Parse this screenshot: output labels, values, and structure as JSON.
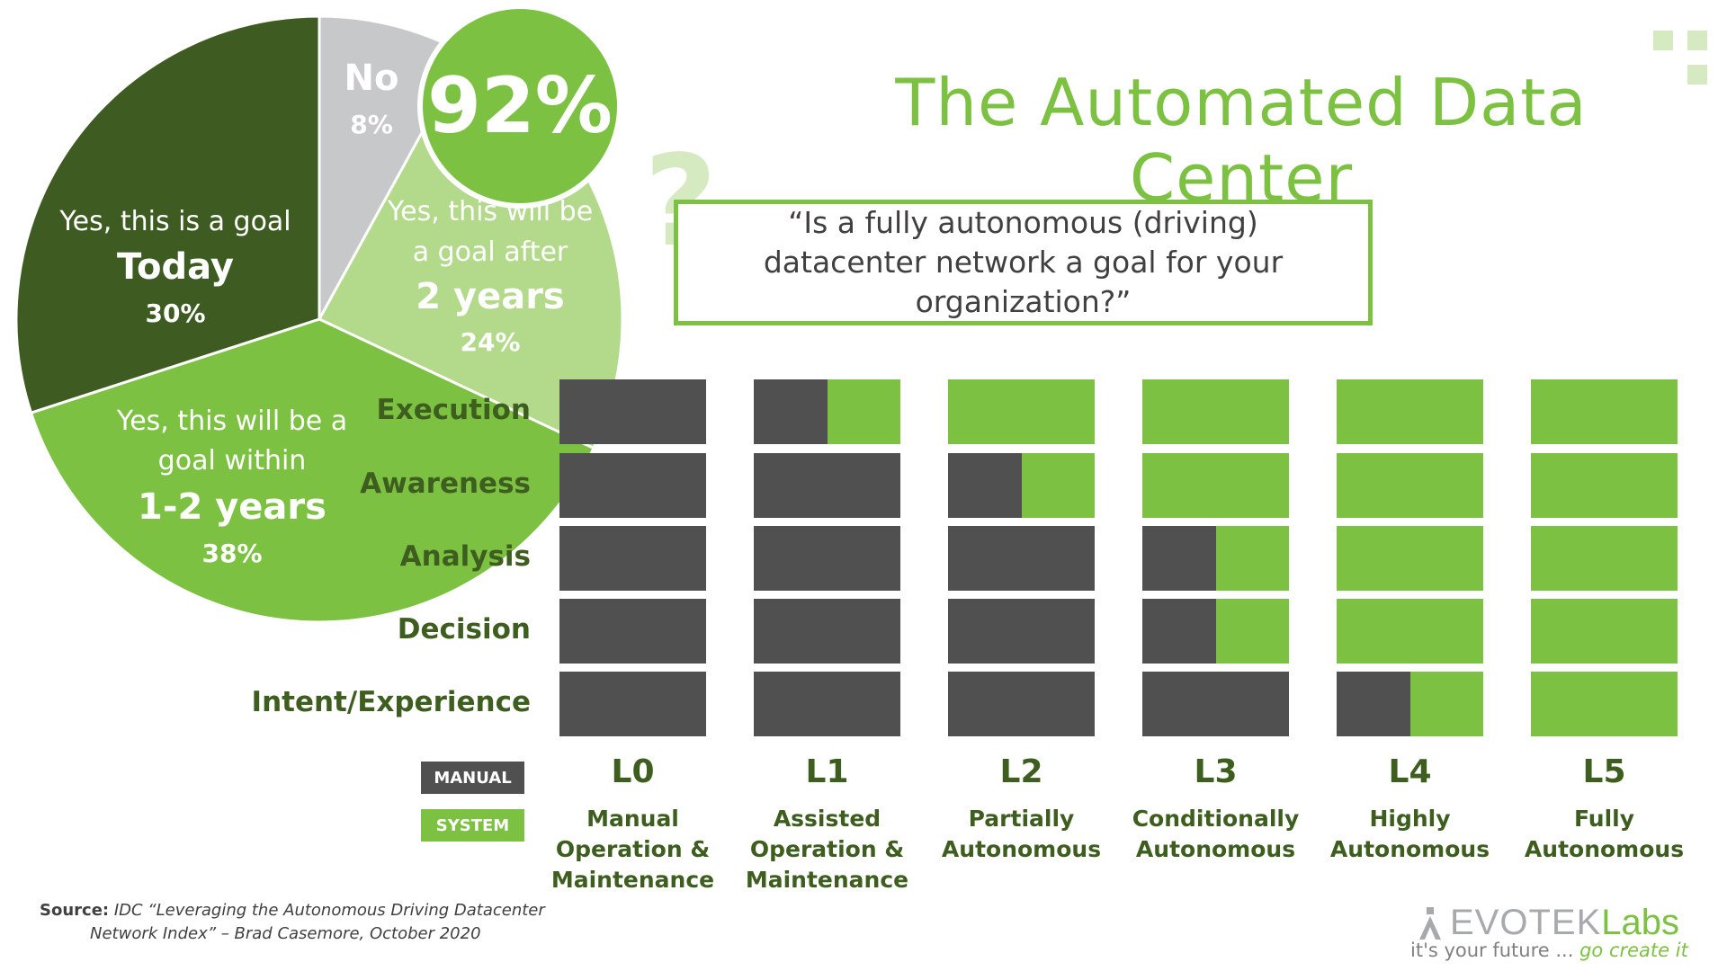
{
  "title": "The Automated Data Center",
  "question": "“Is a fully autonomous (driving) datacenter network a goal for your organization?”",
  "highlight": "92%",
  "colors": {
    "accent": "#7dc142",
    "dark_green": "#3d5e1f",
    "mid_green": "#7dc142",
    "light_green": "#b3d98a",
    "pie_dark": "#3e5c22",
    "gray": "#c7c8ca",
    "manual": "#505050",
    "system": "#7dc142"
  },
  "chart_data": [
    {
      "type": "pie",
      "slices": [
        {
          "key": "no",
          "label_line1": "No",
          "value": 8,
          "value_label": "8%"
        },
        {
          "key": "after2",
          "label_line1": "Yes, this will be",
          "label_line2": "a goal after",
          "emphasis": "2 years",
          "value": 24,
          "value_label": "24%"
        },
        {
          "key": "within12",
          "label_line1": "Yes, this will be a",
          "label_line2": "goal within",
          "emphasis": "1-2 years",
          "value": 38,
          "value_label": "38%"
        },
        {
          "key": "today",
          "label_line1": "Yes, this is a goal",
          "emphasis": "Today",
          "value": 30,
          "value_label": "30%"
        }
      ]
    },
    {
      "type": "heatmap",
      "rows": [
        "Execution",
        "Awareness",
        "Analysis",
        "Decision",
        "Intent/Experience"
      ],
      "levels": [
        {
          "name": "L0",
          "desc": "Manual\nOperation &\nMaintenance",
          "system_share": [
            0,
            0,
            0,
            0,
            0
          ]
        },
        {
          "name": "L1",
          "desc": "Assisted\nOperation &\nMaintenance",
          "system_share": [
            0.5,
            0,
            0,
            0,
            0
          ]
        },
        {
          "name": "L2",
          "desc": "Partially\nAutonomous",
          "system_share": [
            1,
            0.5,
            0,
            0,
            0
          ]
        },
        {
          "name": "L3",
          "desc": "Conditionally\nAutonomous",
          "system_share": [
            1,
            1,
            0.5,
            0.5,
            0
          ]
        },
        {
          "name": "L4",
          "desc": "Highly\nAutonomous",
          "system_share": [
            1,
            1,
            1,
            1,
            0.5
          ]
        },
        {
          "name": "L5",
          "desc": "Fully\nAutonomous",
          "system_share": [
            1,
            1,
            1,
            1,
            1
          ]
        }
      ],
      "legend": {
        "manual": "MANUAL",
        "system": "SYSTEM"
      }
    }
  ],
  "source": {
    "label": "Source:",
    "line1": "IDC “Leveraging the Autonomous Driving Datacenter",
    "line2": "Network Index” – Brad Casemore, October 2020"
  },
  "logo": {
    "brand": "EVOTEK",
    "brand_suffix": "Labs",
    "tagline_a": "it's your future ...",
    "tagline_b": "go create it"
  }
}
